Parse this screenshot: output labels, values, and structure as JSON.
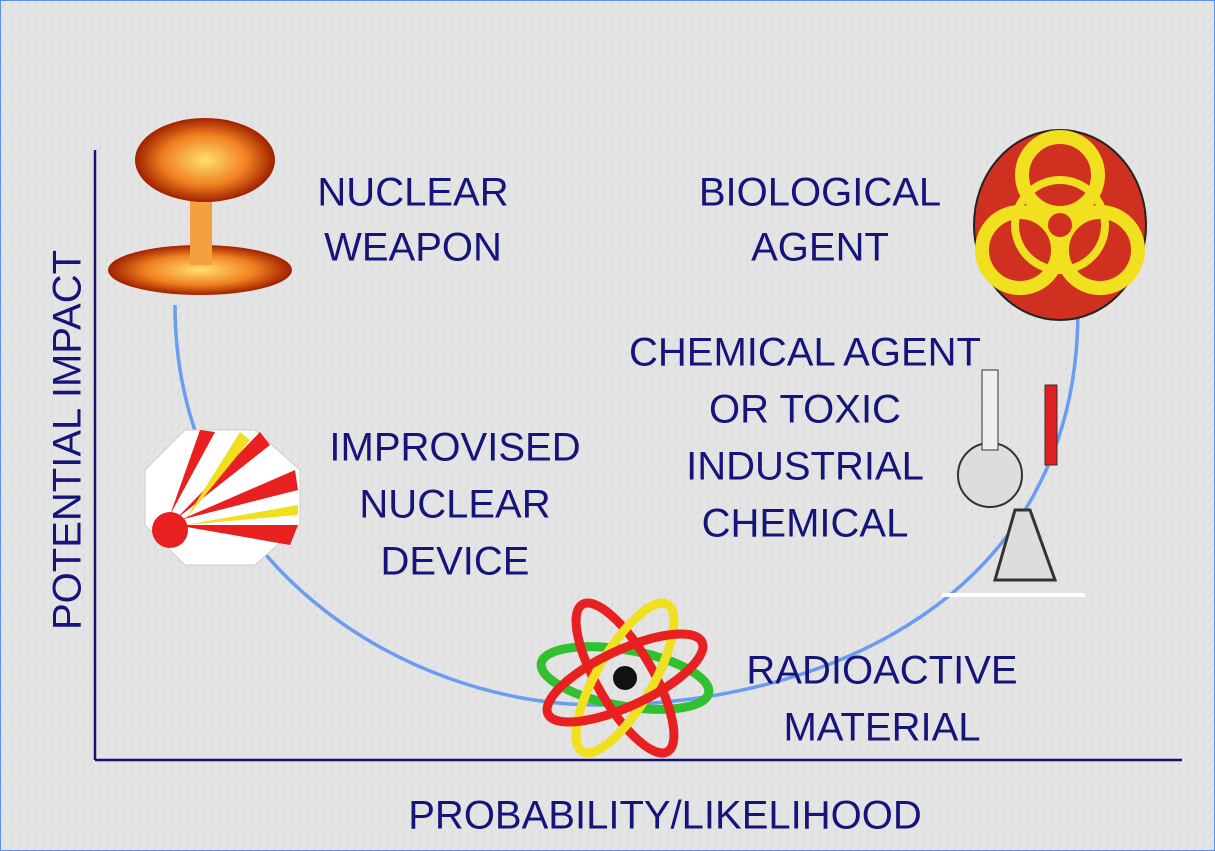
{
  "axes": {
    "x_label": "PROBABILITY/LIKELIHOOD",
    "y_label": "POTENTIAL IMPACT"
  },
  "nodes": [
    {
      "label_lines": [
        "NUCLEAR",
        "WEAPON"
      ]
    },
    {
      "label_lines": [
        "BIOLOGICAL",
        "AGENT"
      ]
    },
    {
      "label_lines": [
        "CHEMICAL AGENT",
        "OR TOXIC",
        "INDUSTRIAL",
        "CHEMICAL"
      ]
    },
    {
      "label_lines": [
        "IMPROVISED",
        "NUCLEAR",
        "DEVICE"
      ]
    },
    {
      "label_lines": [
        "RADIOACTIVE",
        "MATERIAL"
      ]
    }
  ]
}
